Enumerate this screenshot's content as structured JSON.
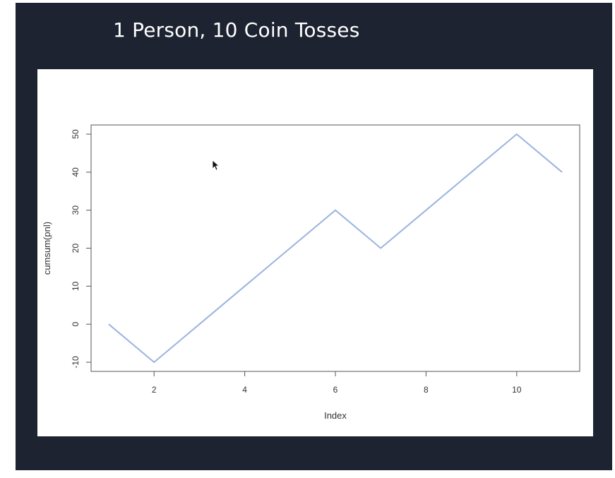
{
  "slide": {
    "title": "1 Person, 10 Coin Tosses"
  },
  "caption": {
    "text": ""
  },
  "icons": {
    "cursor": "mouse-pointer-icon"
  },
  "colors": {
    "slide_background": "#1d2330",
    "line": "#9ab4de",
    "axis": "#555555"
  },
  "chart_data": {
    "type": "line",
    "title": "",
    "xlabel": "Index",
    "ylabel": "cumsum(pnl)",
    "x": [
      1,
      2,
      3,
      4,
      5,
      6,
      7,
      8,
      9,
      10,
      11
    ],
    "series": [
      {
        "values": [
          0,
          -10,
          0,
          10,
          20,
          30,
          20,
          30,
          40,
          50,
          40
        ]
      }
    ],
    "xticks": [
      2,
      4,
      6,
      8,
      10
    ],
    "yticks": [
      -10,
      0,
      10,
      20,
      30,
      40,
      50
    ],
    "xlim": [
      1,
      11
    ],
    "ylim": [
      -10,
      50
    ],
    "grid": false,
    "legend": "none"
  }
}
